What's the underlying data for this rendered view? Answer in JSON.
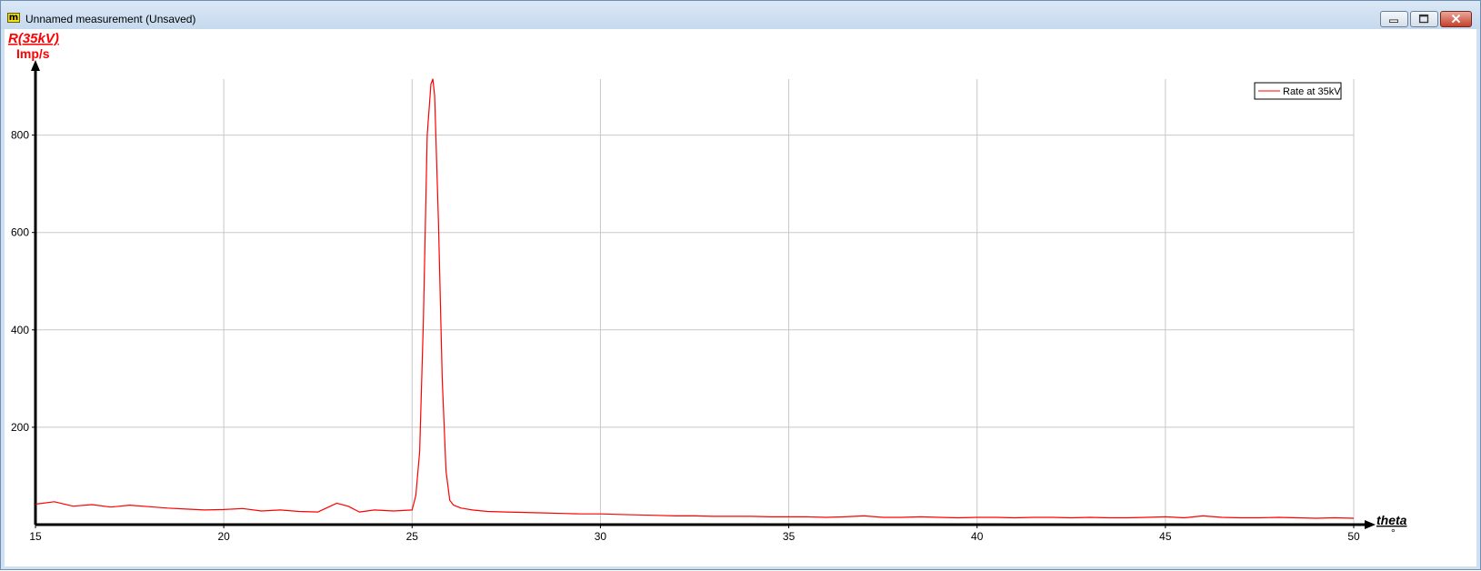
{
  "window": {
    "title": "Unnamed measurement (Unsaved)",
    "icon": "measure-app-icon",
    "controls": [
      "minimize-icon",
      "maximize-icon",
      "close-icon"
    ]
  },
  "chart_data": {
    "type": "line",
    "xlabel": "theta",
    "xunit": "°",
    "ylabel": "R(35kV)",
    "yunit": "Imp/s",
    "xlim": [
      15,
      50
    ],
    "ylim": [
      0,
      915
    ],
    "xticks": [
      15,
      20,
      25,
      30,
      35,
      40,
      45,
      50
    ],
    "yticks": [
      200,
      400,
      600,
      800
    ],
    "grid": true,
    "legend_position": "top-right",
    "series": [
      {
        "name": "Rate at 35kV",
        "color": "#ff0000",
        "x": [
          15,
          15.5,
          16,
          16.5,
          17,
          17.5,
          18,
          18.5,
          19,
          19.5,
          20,
          20.5,
          21,
          21.5,
          22,
          22.5,
          23,
          23.3,
          23.6,
          24,
          24.5,
          25,
          25.1,
          25.2,
          25.3,
          25.4,
          25.5,
          25.55,
          25.6,
          25.7,
          25.8,
          25.9,
          26,
          26.1,
          26.3,
          26.6,
          27,
          27.5,
          28,
          28.5,
          29,
          29.5,
          30,
          30.5,
          31,
          31.5,
          32,
          32.5,
          33,
          33.5,
          34,
          34.5,
          35,
          35.5,
          36,
          36.5,
          37,
          37.5,
          38,
          38.5,
          39,
          39.5,
          40,
          40.5,
          41,
          41.5,
          42,
          42.5,
          43,
          43.5,
          44,
          44.5,
          45,
          45.5,
          46,
          46.5,
          47,
          47.5,
          48,
          48.5,
          49,
          49.5,
          50
        ],
        "y": [
          42,
          47,
          38,
          41,
          36,
          40,
          37,
          34,
          32,
          30,
          31,
          33,
          28,
          30,
          27,
          26,
          44,
          38,
          26,
          30,
          28,
          30,
          60,
          150,
          420,
          800,
          905,
          915,
          880,
          620,
          300,
          110,
          50,
          40,
          34,
          30,
          27,
          26,
          25,
          24,
          23,
          22,
          22,
          21,
          20,
          19,
          18,
          18,
          17,
          17,
          17,
          16,
          16,
          16,
          15,
          16,
          18,
          15,
          15,
          16,
          15,
          14,
          15,
          15,
          14,
          15,
          15,
          14,
          15,
          14,
          14,
          15,
          16,
          14,
          18,
          15,
          14,
          14,
          15,
          14,
          13,
          14,
          13
        ]
      }
    ]
  }
}
